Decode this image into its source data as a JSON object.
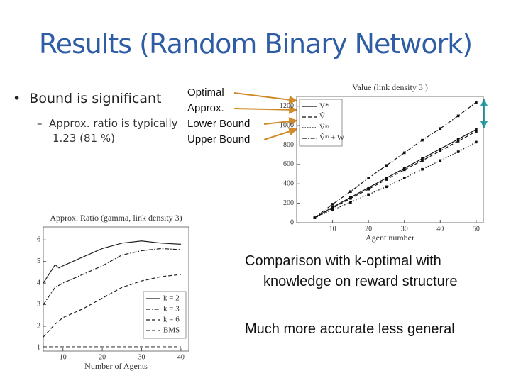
{
  "header": {
    "title": "Results (Random Binary Network)"
  },
  "bullets": [
    {
      "text": "Bound is significant",
      "sub": "Approx. ratio is typically 1.23 (81 %)"
    }
  ],
  "labels": [
    "Optimal",
    "Approx.",
    "Lower Bound",
    "Upper Bound"
  ],
  "comments": [
    "Comparison with k-optimal with knowledge on reward structure",
    "Much more accurate less general"
  ],
  "chart_data": [
    {
      "type": "line",
      "title": "Value (link density 3 )",
      "x_label": "Agent number",
      "x": [
        5,
        10,
        15,
        20,
        25,
        30,
        35,
        40,
        45,
        50
      ],
      "xlim": [
        0,
        52
      ],
      "ylim": [
        0,
        1300
      ],
      "xticks": [
        10,
        20,
        30,
        40,
        50
      ],
      "yticks": [
        0,
        200,
        400,
        600,
        800,
        1000,
        1200
      ],
      "legend": "upper left",
      "series": [
        {
          "name": "V*",
          "color": "#111111",
          "dash": "solid",
          "values": [
            50,
            160,
            260,
            360,
            460,
            560,
            660,
            760,
            860,
            960
          ]
        },
        {
          "name": "V̂",
          "color": "#111111",
          "dash": "dashed",
          "values": [
            50,
            150,
            250,
            345,
            445,
            545,
            640,
            740,
            840,
            940
          ]
        },
        {
          "name": "V̂ᵐ",
          "color": "#111111",
          "dash": "dotted",
          "values": [
            50,
            130,
            210,
            290,
            370,
            460,
            550,
            640,
            730,
            830
          ]
        },
        {
          "name": "V̂ᵐ + W",
          "color": "#111111",
          "dash": "dashdot",
          "values": [
            50,
            190,
            320,
            460,
            590,
            720,
            850,
            970,
            1100,
            1240
          ]
        }
      ]
    },
    {
      "type": "line",
      "title": "Approx. Ratio (gamma, link density 3)",
      "x_label": "Number of Agents",
      "x": [
        5,
        8,
        9,
        10,
        15,
        20,
        25,
        30,
        35,
        40
      ],
      "xlim": [
        5,
        42
      ],
      "ylim": [
        0.85,
        6.6
      ],
      "xticks": [
        10,
        20,
        30,
        40
      ],
      "yticks": [
        1,
        2,
        3,
        4,
        5,
        6
      ],
      "legend": "lower right",
      "series": [
        {
          "name": "k = 2",
          "color": "#222222",
          "dash": "solid",
          "values": [
            4.0,
            4.85,
            4.7,
            4.8,
            5.2,
            5.6,
            5.85,
            5.95,
            5.85,
            5.8
          ]
        },
        {
          "name": "k = 3",
          "color": "#222222",
          "dash": "dashdot",
          "values": [
            3.0,
            3.8,
            3.9,
            4.0,
            4.4,
            4.8,
            5.3,
            5.5,
            5.6,
            5.55
          ]
        },
        {
          "name": "k = 6",
          "color": "#222222",
          "dash": "dashed",
          "values": [
            1.5,
            2.1,
            2.25,
            2.4,
            2.8,
            3.3,
            3.8,
            4.1,
            4.3,
            4.4
          ]
        },
        {
          "name": "BMS",
          "color": "#444444",
          "dash": "dashed",
          "values": [
            1.05,
            1.05,
            1.05,
            1.05,
            1.05,
            1.05,
            1.05,
            1.05,
            1.05,
            1.05
          ]
        }
      ]
    }
  ]
}
